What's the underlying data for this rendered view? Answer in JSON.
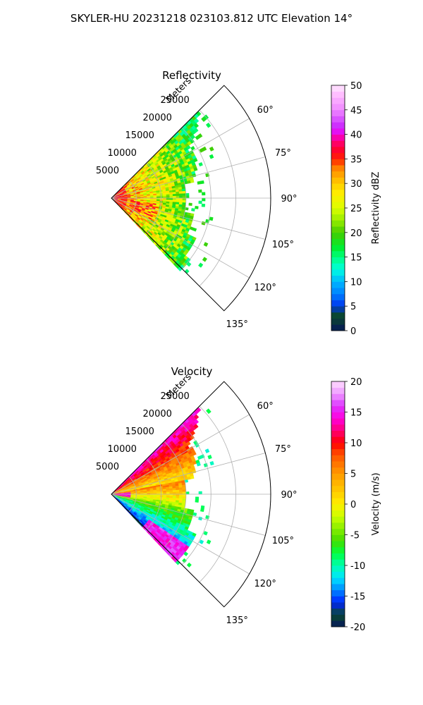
{
  "figure": {
    "suptitle": "SKYLER-HU  20231218  023103.812 UTC Elevation 14°"
  },
  "chart_data": [
    {
      "type": "polar-sector-radar",
      "title": "Reflectivity",
      "radial_label": "Meters",
      "radial_ticks": [
        5000,
        10000,
        15000,
        20000,
        25000
      ],
      "radial_max_m": 32000,
      "angle_ticks_deg": [
        60,
        75,
        90,
        105,
        120,
        135
      ],
      "angle_tick_labels": [
        "60°",
        "75°",
        "90°",
        "105°",
        "120°",
        "135°"
      ],
      "sector_deg": [
        45,
        135
      ],
      "grid": true,
      "colorbar": {
        "label": "Reflectivity dBZ",
        "range": [
          0,
          50
        ],
        "ticks": [
          0,
          5,
          10,
          15,
          20,
          25,
          30,
          35,
          40,
          45,
          50
        ],
        "stops": [
          {
            "v": 0,
            "c": "#06175a"
          },
          {
            "v": 2,
            "c": "#0a3a3a"
          },
          {
            "v": 3.5,
            "c": "#0a4a30"
          },
          {
            "v": 5,
            "c": "#0033ee"
          },
          {
            "v": 7.5,
            "c": "#0080ff"
          },
          {
            "v": 10,
            "c": "#00b7ff"
          },
          {
            "v": 12.5,
            "c": "#00ffe0"
          },
          {
            "v": 15,
            "c": "#00ff80"
          },
          {
            "v": 17,
            "c": "#00ee30"
          },
          {
            "v": 20,
            "c": "#44cc00"
          },
          {
            "v": 22,
            "c": "#88e800"
          },
          {
            "v": 25,
            "c": "#ddff00"
          },
          {
            "v": 28,
            "c": "#ffee00"
          },
          {
            "v": 30,
            "c": "#ffcc00"
          },
          {
            "v": 33,
            "c": "#ff8800"
          },
          {
            "v": 35,
            "c": "#ff2200"
          },
          {
            "v": 37,
            "c": "#ff0033"
          },
          {
            "v": 39,
            "c": "#ff0088"
          },
          {
            "v": 40,
            "c": "#ee00ee"
          },
          {
            "v": 42,
            "c": "#cc33ff"
          },
          {
            "v": 45,
            "c": "#ee88ff"
          },
          {
            "v": 48,
            "c": "#ffbbff"
          },
          {
            "v": 50,
            "c": "#ffe8ff"
          }
        ]
      }
    },
    {
      "type": "polar-sector-radar",
      "title": "Velocity",
      "radial_label": "Meters",
      "radial_ticks": [
        5000,
        10000,
        15000,
        20000,
        25000
      ],
      "radial_max_m": 32000,
      "angle_ticks_deg": [
        60,
        75,
        90,
        105,
        120,
        135
      ],
      "angle_tick_labels": [
        "60°",
        "75°",
        "90°",
        "105°",
        "120°",
        "135°"
      ],
      "sector_deg": [
        45,
        135
      ],
      "grid": true,
      "colorbar": {
        "label": "Velocity (m/s)",
        "range": [
          -20,
          20
        ],
        "ticks": [
          -20,
          -15,
          -10,
          -5,
          0,
          5,
          10,
          15,
          20
        ],
        "stops": [
          {
            "v": -20,
            "c": "#06175a"
          },
          {
            "v": -18,
            "c": "#0a4a30"
          },
          {
            "v": -16,
            "c": "#0022ff"
          },
          {
            "v": -14,
            "c": "#0088ff"
          },
          {
            "v": -12,
            "c": "#00e5ff"
          },
          {
            "v": -10,
            "c": "#00ffb0"
          },
          {
            "v": -8,
            "c": "#00ff40"
          },
          {
            "v": -6,
            "c": "#44dd00"
          },
          {
            "v": -4,
            "c": "#88ee00"
          },
          {
            "v": -2,
            "c": "#ccff00"
          },
          {
            "v": 0,
            "c": "#ffee00"
          },
          {
            "v": 2,
            "c": "#ffcc00"
          },
          {
            "v": 5,
            "c": "#ff9900"
          },
          {
            "v": 8,
            "c": "#ff5500"
          },
          {
            "v": 10,
            "c": "#ff0000"
          },
          {
            "v": 12,
            "c": "#ff0077"
          },
          {
            "v": 14,
            "c": "#ff00dd"
          },
          {
            "v": 16,
            "c": "#dd33ff"
          },
          {
            "v": 18,
            "c": "#ee99ff"
          },
          {
            "v": 20,
            "c": "#ffddff"
          }
        ]
      }
    }
  ]
}
